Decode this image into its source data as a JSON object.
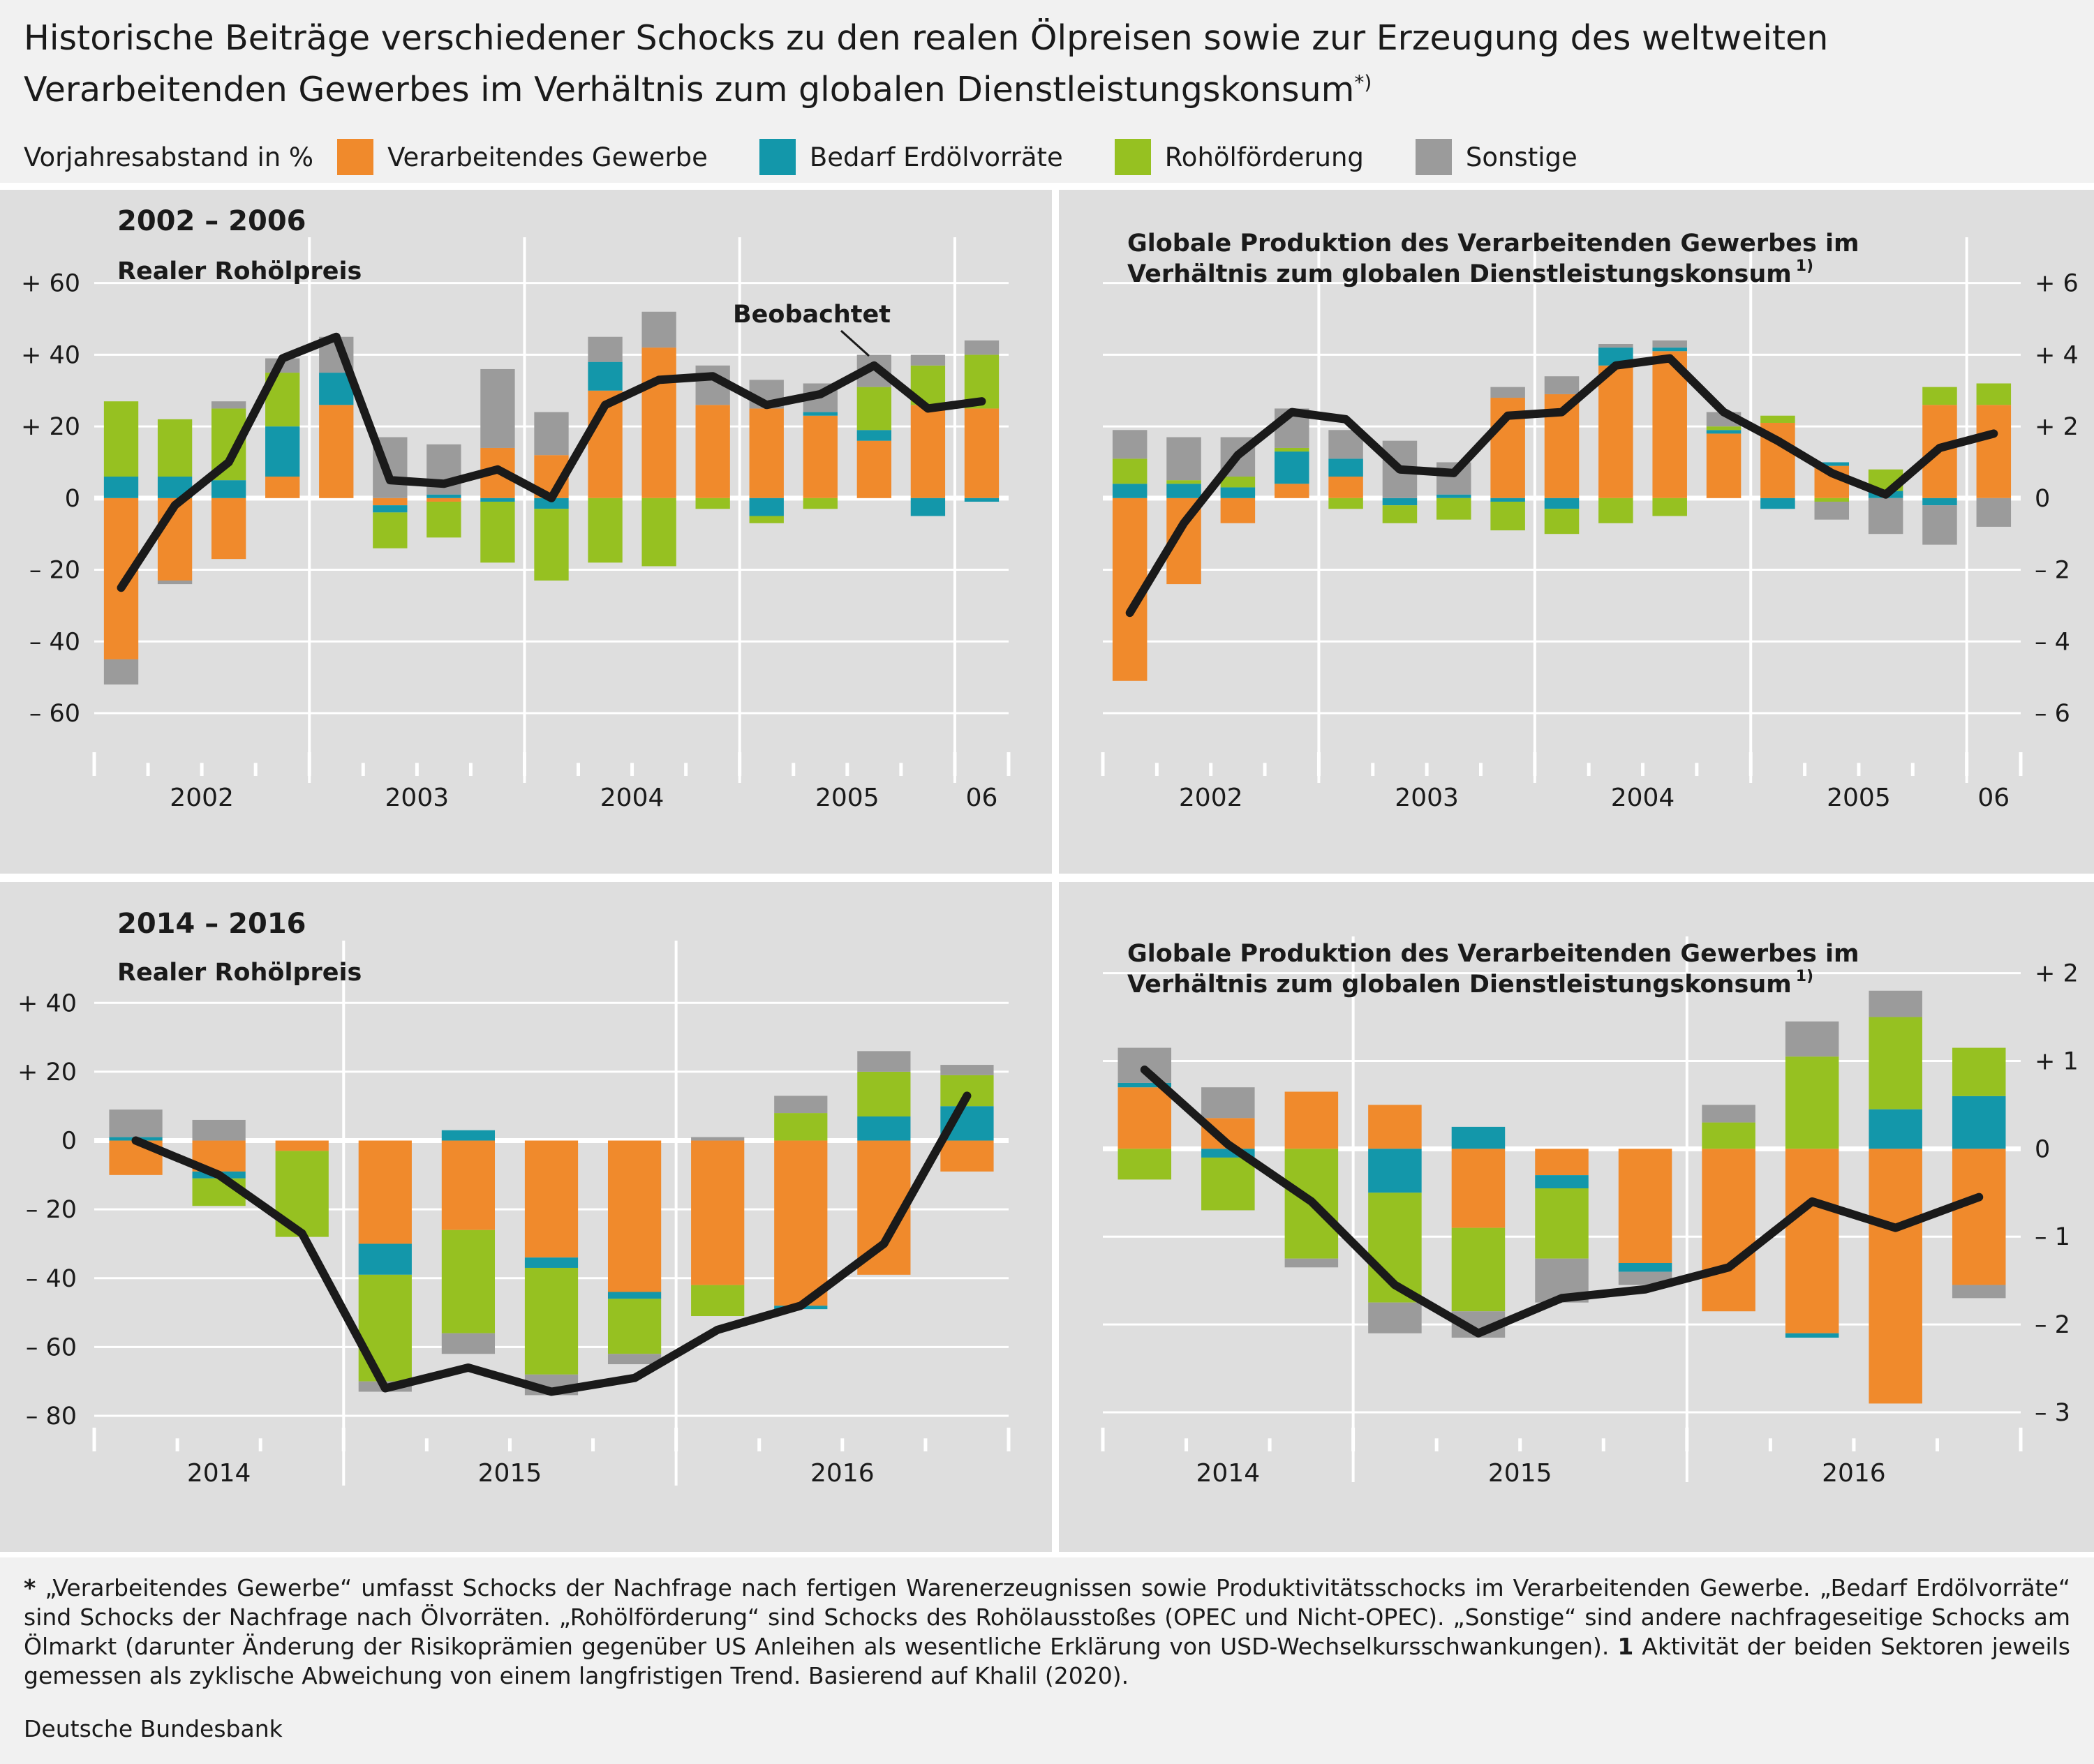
{
  "title_line1": "Historische Beiträge verschiedener Schocks zu den realen Ölpreisen sowie zur Erzeugung des weltweiten",
  "title_line2": "Verarbeitenden Gewerbes im Verhältnis zum globalen Dienstleistungskonsum",
  "title_marker": "*)",
  "unit_label": "Vorjahresabstand in %",
  "colors": {
    "manufacturing": "#f08a2c",
    "inventory": "#1397aa",
    "oil_supply": "#96c121",
    "other": "#9b9b9b",
    "observed": "#1a1a1a",
    "panel_bg": "#dedede"
  },
  "legend": [
    {
      "label": "Verarbeitendes Gewerbe",
      "color": "#f08a2c"
    },
    {
      "label": "Bedarf Erdölvorräte",
      "color": "#1397aa"
    },
    {
      "label": "Rohölförderung",
      "color": "#96c121"
    },
    {
      "label": "Sonstige",
      "color": "#9b9b9b"
    }
  ],
  "chart_data": [
    {
      "type": "bar",
      "stacked": true,
      "period_label": "2002 – 2006",
      "subtitle": "Realer Rohölpreis",
      "annotation": "Beobachtet",
      "axis_side": "left",
      "ylim": [
        -60,
        65
      ],
      "yticks": [
        60,
        40,
        20,
        0,
        -20,
        -40,
        -60
      ],
      "ytick_labels": [
        "+ 60",
        "+ 40",
        "+ 20",
        "0",
        "– 20",
        "– 40",
        "– 60"
      ],
      "year_labels": [
        "2002",
        "2003",
        "2004",
        "2005",
        "06"
      ],
      "year_quarters": [
        4,
        4,
        4,
        4,
        1
      ],
      "series": [
        {
          "name": "Verarbeitendes Gewerbe",
          "values": [
            -45,
            -23,
            -17,
            6,
            26,
            -2,
            -1,
            14,
            12,
            30,
            42,
            26,
            25,
            23,
            16,
            26,
            25
          ]
        },
        {
          "name": "Bedarf Erdölvorräte",
          "values": [
            6,
            6,
            5,
            14,
            9,
            -2,
            1,
            -1,
            -3,
            8,
            0,
            0,
            -5,
            1,
            3,
            -5,
            -1
          ]
        },
        {
          "name": "Rohölförderung",
          "values": [
            21,
            16,
            20,
            15,
            0,
            -10,
            -10,
            -17,
            -20,
            -18,
            -19,
            -3,
            -2,
            -3,
            12,
            11,
            15
          ]
        },
        {
          "name": "Sonstige",
          "values": [
            -7,
            -1,
            2,
            4,
            10,
            17,
            14,
            22,
            12,
            7,
            10,
            11,
            8,
            8,
            9,
            3,
            4
          ]
        },
        {
          "name": "Beobachtet",
          "type": "line",
          "values": [
            -25,
            -2,
            10,
            39,
            45,
            5,
            4,
            8,
            0,
            26,
            33,
            34,
            26,
            29,
            37,
            25,
            27
          ]
        }
      ]
    },
    {
      "type": "bar",
      "stacked": true,
      "subtitle": "Globale Produktion des Verarbeitenden Gewerbes im Verhältnis zum globalen Dienstleistungskonsum",
      "subtitle_line1": "Globale Produktion des Verarbeitenden Gewerbes im",
      "subtitle_line2": "Verhältnis zum globalen Dienstleistungskonsum",
      "subtitle_note": "1)",
      "axis_side": "right",
      "ylim": [
        -6,
        6.5
      ],
      "yticks": [
        6,
        4,
        2,
        0,
        -2,
        -4,
        -6
      ],
      "ytick_labels": [
        "+ 6",
        "+ 4",
        "+ 2",
        "0",
        "– 2",
        "– 4",
        "– 6"
      ],
      "year_labels": [
        "2002",
        "2003",
        "2004",
        "2005",
        "06"
      ],
      "year_quarters": [
        4,
        4,
        4,
        4,
        1
      ],
      "series": [
        {
          "name": "Verarbeitendes Gewerbe",
          "values": [
            -5.1,
            -2.4,
            -0.7,
            0.4,
            0.6,
            0,
            0,
            2.8,
            2.9,
            3.7,
            4.1,
            1.8,
            2.1,
            0.9,
            0,
            2.6,
            2.6
          ]
        },
        {
          "name": "Bedarf Erdölvorräte",
          "values": [
            0.4,
            0.4,
            0.3,
            0.9,
            0.5,
            -0.2,
            0.1,
            -0.1,
            -0.3,
            0.5,
            0.1,
            0.1,
            -0.3,
            0.1,
            0.2,
            -0.2,
            0
          ]
        },
        {
          "name": "Rohölförderung",
          "values": [
            0.7,
            0.1,
            0.3,
            0.1,
            -0.3,
            -0.5,
            -0.6,
            -0.8,
            -0.7,
            -0.7,
            -0.5,
            0.1,
            0.2,
            -0.1,
            0.6,
            0.5,
            0.6
          ]
        },
        {
          "name": "Sonstige",
          "values": [
            0.8,
            1.2,
            1.1,
            1.1,
            0.8,
            1.6,
            0.9,
            0.3,
            0.5,
            0.1,
            0.2,
            0.4,
            0,
            -0.5,
            -1,
            -1.1,
            -0.8
          ]
        },
        {
          "name": "Beobachtet",
          "type": "line",
          "values": [
            -3.2,
            -0.7,
            1.2,
            2.4,
            2.2,
            0.8,
            0.7,
            2.3,
            2.4,
            3.7,
            3.9,
            2.4,
            1.6,
            0.7,
            0.1,
            1.4,
            1.8
          ]
        }
      ]
    },
    {
      "type": "bar",
      "stacked": true,
      "period_label": "2014 – 2016",
      "subtitle": "Realer Rohölpreis",
      "axis_side": "left",
      "ylim": [
        -80,
        50
      ],
      "yticks": [
        40,
        20,
        0,
        -20,
        -40,
        -60,
        -80
      ],
      "ytick_labels": [
        "+ 40",
        "+ 20",
        "0",
        "– 20",
        "– 40",
        "– 60",
        "– 80"
      ],
      "year_labels": [
        "2014",
        "2015",
        "2016"
      ],
      "year_quarters": [
        3,
        4,
        4
      ],
      "series": [
        {
          "name": "Verarbeitendes Gewerbe",
          "values": [
            -10,
            -9,
            -3,
            -30,
            -26,
            -34,
            -44,
            -42,
            -48,
            -39,
            -9
          ]
        },
        {
          "name": "Bedarf Erdölvorräte",
          "values": [
            1,
            -2,
            0,
            -9,
            3,
            -3,
            -2,
            0,
            -1,
            7,
            10
          ]
        },
        {
          "name": "Rohölförderung",
          "values": [
            0,
            -8,
            -25,
            -31,
            -30,
            -31,
            -16,
            -9,
            8,
            13,
            9
          ]
        },
        {
          "name": "Sonstige",
          "values": [
            8,
            6,
            0,
            -3,
            -6,
            -6,
            -3,
            1,
            5,
            6,
            3
          ]
        },
        {
          "name": "Beobachtet",
          "type": "line",
          "values": [
            0,
            -10,
            -27,
            -72,
            -66,
            -73,
            -69,
            -55,
            -48,
            -30,
            13
          ]
        }
      ]
    },
    {
      "type": "bar",
      "stacked": true,
      "subtitle": "Globale Produktion des Verarbeitenden Gewerbes im Verhältnis zum globalen Dienstleistungskonsum",
      "subtitle_line1": "Globale Produktion des Verarbeitenden Gewerbes im",
      "subtitle_line2": "Verhältnis zum globalen Dienstleistungskonsum",
      "subtitle_note": "1)",
      "axis_side": "right",
      "ylim": [
        -3,
        2.1
      ],
      "yticks": [
        2,
        1,
        0,
        -1,
        -2,
        -3
      ],
      "ytick_labels": [
        "+ 2",
        "+ 1",
        "0",
        "– 1",
        "– 2",
        "– 3"
      ],
      "year_labels": [
        "2014",
        "2015",
        "2016"
      ],
      "year_quarters": [
        3,
        4,
        4
      ],
      "series": [
        {
          "name": "Verarbeitendes Gewerbe",
          "values": [
            0.7,
            0.35,
            0.65,
            0.5,
            -0.9,
            -0.3,
            -1.3,
            -1.85,
            -2.1,
            -2.9,
            -1.55
          ]
        },
        {
          "name": "Bedarf Erdölvorräte",
          "values": [
            0.05,
            -0.1,
            0,
            -0.5,
            0.25,
            -0.15,
            -0.1,
            0,
            -0.05,
            0.45,
            0.6
          ]
        },
        {
          "name": "Rohölförderung",
          "values": [
            -0.35,
            -0.6,
            -1.25,
            -1.25,
            -0.95,
            -0.8,
            0,
            0.3,
            1.05,
            1.05,
            0.55
          ]
        },
        {
          "name": "Sonstige",
          "values": [
            0.4,
            0.35,
            -0.1,
            -0.35,
            -0.3,
            -0.5,
            -0.15,
            0.2,
            0.4,
            0.3,
            -0.15
          ]
        },
        {
          "name": "Beobachtet",
          "type": "line",
          "values": [
            0.9,
            0.05,
            -0.6,
            -1.55,
            -2.1,
            -1.7,
            -1.6,
            -1.35,
            -0.6,
            -0.9,
            -0.55
          ]
        }
      ]
    }
  ],
  "footnote": {
    "star": "*",
    "main": " „Verarbeitendes Gewerbe“ umfasst Schocks der Nachfrage nach fertigen Warenerzeugnissen sowie Produktivitätsschocks im Verarbeitenden Gewerbe. „Bedarf Erdölvorräte“ sind Schocks der Nachfrage nach Ölvorräten. „Rohölförderung“ sind Schocks des Rohölausstoßes (OPEC und Nicht-OPEC). „Sonstige“ sind andere nachfrageseitige Schocks am Ölmarkt (darunter Änderung der Risikoprämien gegenüber US Anleihen als wesentliche Erklärung von USD-Wechselkursschwankungen). ",
    "one": "1",
    "one_text": " Aktivität der beiden Sektoren jeweils gemessen als zyklische Abweichung von einem langfristigen Trend. Basierend auf Khalil (2020)."
  },
  "source": "Deutsche Bundesbank"
}
